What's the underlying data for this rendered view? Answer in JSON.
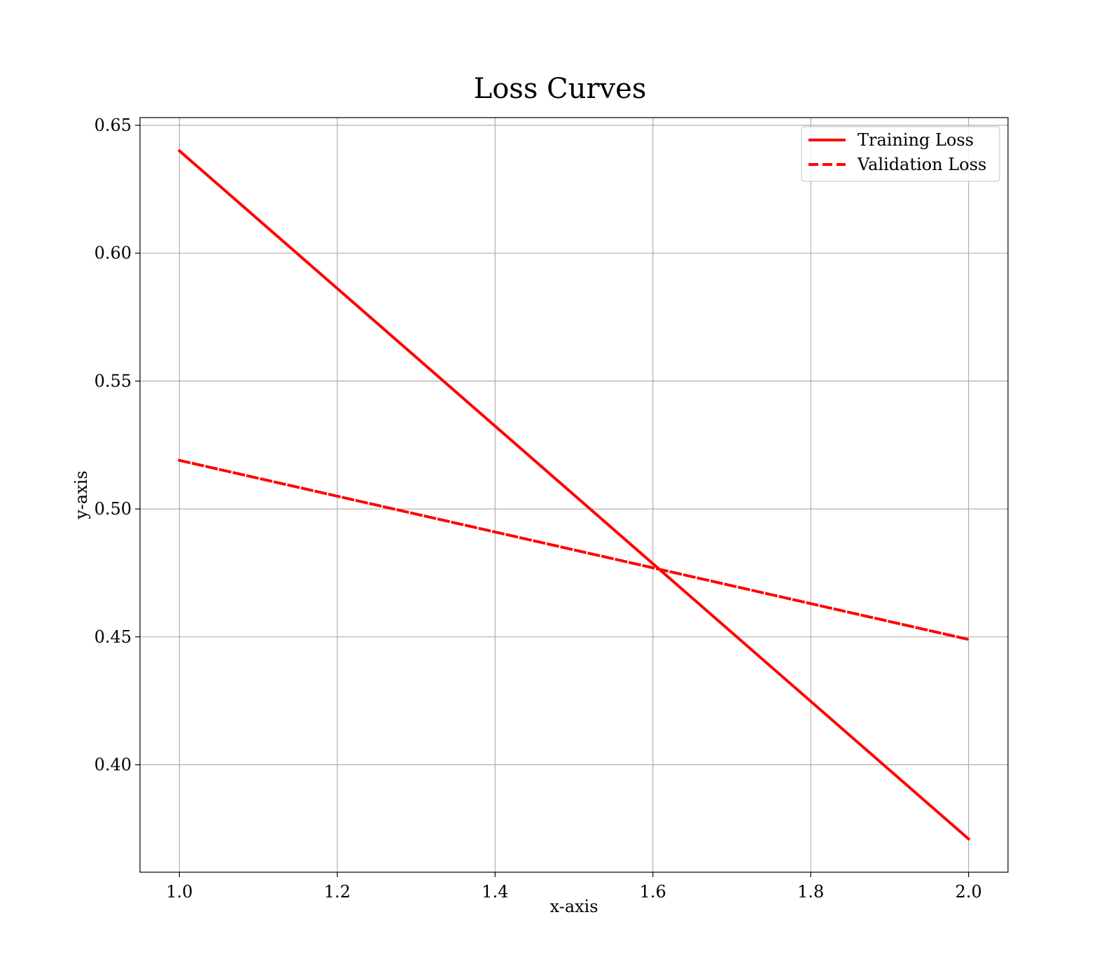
{
  "chart_data": {
    "type": "line",
    "title": "Loss Curves",
    "xlabel": "x-axis",
    "ylabel": "y-axis",
    "xlim": [
      0.95,
      2.05
    ],
    "ylim": [
      0.358,
      0.653
    ],
    "xticks": [
      1.0,
      1.2,
      1.4,
      1.6,
      1.8,
      2.0
    ],
    "xtick_labels": [
      "1.0",
      "1.2",
      "1.4",
      "1.6",
      "1.8",
      "2.0"
    ],
    "yticks": [
      0.4,
      0.45,
      0.5,
      0.55,
      0.6,
      0.65
    ],
    "ytick_labels": [
      "0.40",
      "0.45",
      "0.50",
      "0.55",
      "0.60",
      "0.65"
    ],
    "grid": true,
    "legend_position": "top-right",
    "series": [
      {
        "name": "Training Loss",
        "x": [
          1.0,
          2.0
        ],
        "y": [
          0.64,
          0.371
        ],
        "color": "#ff0000",
        "linestyle": "solid"
      },
      {
        "name": "Validation Loss",
        "x": [
          1.0,
          2.0
        ],
        "y": [
          0.519,
          0.449
        ],
        "color": "#ff0000",
        "linestyle": "dashed"
      }
    ]
  }
}
